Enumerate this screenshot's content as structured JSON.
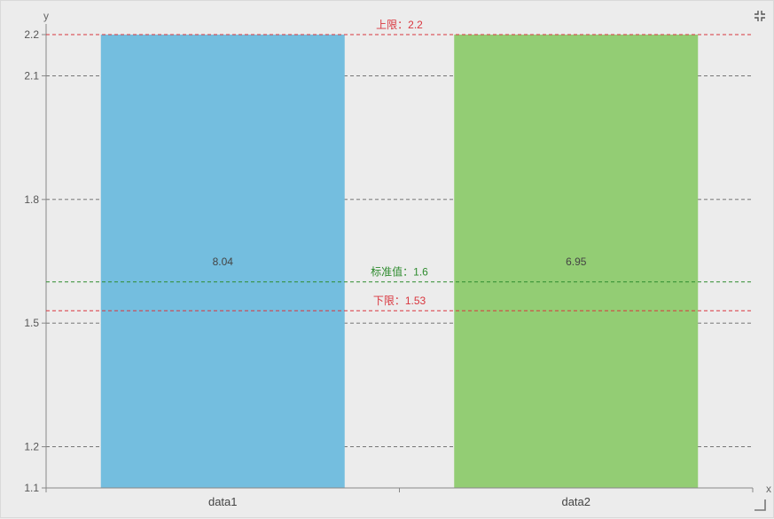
{
  "chart_data": {
    "type": "bar",
    "categories": [
      "data1",
      "data2"
    ],
    "values": [
      8.04,
      6.95
    ],
    "bar_colors": [
      "#74bedf",
      "#93cd74"
    ],
    "xlabel": "x",
    "ylabel": "y",
    "ylim": [
      1.1,
      2.2
    ],
    "y_ticks": [
      1.1,
      1.2,
      1.5,
      1.8,
      2.1,
      2.2
    ],
    "grid": true,
    "data_labels": [
      "8.04",
      "6.95"
    ],
    "reference_lines": [
      {
        "label": "上限：2.2",
        "value": 2.2,
        "color": "#d9363e"
      },
      {
        "label": "标准值：1.6",
        "value": 1.6,
        "color": "#2e8b2e"
      },
      {
        "label": "下限：1.53",
        "value": 1.53,
        "color": "#d9363e"
      }
    ]
  },
  "toolbar": {
    "fullscreen_icon": "exit-fullscreen-icon",
    "resize_icon": "resize-handle-icon"
  }
}
